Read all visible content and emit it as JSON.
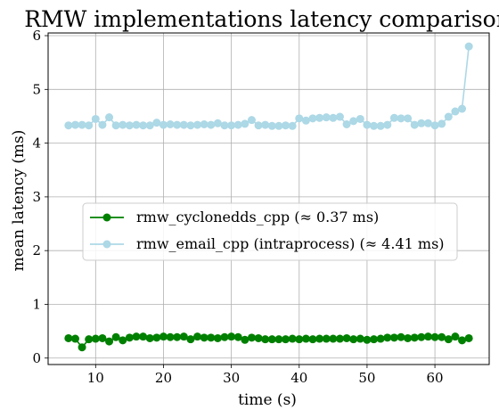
{
  "chart_data": {
    "type": "line",
    "title": "RMW implementations latency comparison",
    "xlabel": "time (s)",
    "ylabel": "mean latency (ms)",
    "xlim": [
      3.0,
      68.0
    ],
    "ylim": [
      -0.12,
      6.05
    ],
    "xticks": [
      10,
      20,
      30,
      40,
      50,
      60
    ],
    "yticks": [
      0,
      1,
      2,
      3,
      4,
      5,
      6
    ],
    "grid": true,
    "legend_position": "center",
    "x": [
      6,
      7,
      8,
      9,
      10,
      11,
      12,
      13,
      14,
      15,
      16,
      17,
      18,
      19,
      20,
      21,
      22,
      23,
      24,
      25,
      26,
      27,
      28,
      29,
      30,
      31,
      32,
      33,
      34,
      35,
      36,
      37,
      38,
      39,
      40,
      41,
      42,
      43,
      44,
      45,
      46,
      47,
      48,
      49,
      50,
      51,
      52,
      53,
      54,
      55,
      56,
      57,
      58,
      59,
      60,
      61,
      62,
      63,
      64,
      65
    ],
    "series": [
      {
        "name": "rmw_cyclonedds_cpp (≈ 0.37 ms)",
        "color": "#008000",
        "values": [
          0.37,
          0.36,
          0.2,
          0.35,
          0.36,
          0.37,
          0.31,
          0.39,
          0.33,
          0.38,
          0.4,
          0.4,
          0.37,
          0.38,
          0.4,
          0.39,
          0.39,
          0.4,
          0.35,
          0.4,
          0.38,
          0.38,
          0.37,
          0.39,
          0.4,
          0.39,
          0.34,
          0.38,
          0.37,
          0.35,
          0.35,
          0.35,
          0.35,
          0.36,
          0.35,
          0.36,
          0.35,
          0.36,
          0.36,
          0.36,
          0.36,
          0.37,
          0.35,
          0.36,
          0.34,
          0.35,
          0.36,
          0.38,
          0.38,
          0.39,
          0.37,
          0.38,
          0.39,
          0.4,
          0.39,
          0.39,
          0.35,
          0.4,
          0.33,
          0.37
        ]
      },
      {
        "name": "rmw_email_cpp (intraprocess) (≈ 4.41 ms)",
        "color": "#add8e6",
        "values": [
          4.33,
          4.34,
          4.34,
          4.33,
          4.45,
          4.34,
          4.48,
          4.33,
          4.34,
          4.33,
          4.34,
          4.33,
          4.33,
          4.38,
          4.34,
          4.35,
          4.34,
          4.34,
          4.33,
          4.34,
          4.35,
          4.34,
          4.37,
          4.33,
          4.33,
          4.34,
          4.36,
          4.43,
          4.33,
          4.34,
          4.32,
          4.32,
          4.33,
          4.32,
          4.46,
          4.42,
          4.46,
          4.47,
          4.48,
          4.47,
          4.49,
          4.35,
          4.41,
          4.45,
          4.34,
          4.32,
          4.32,
          4.34,
          4.47,
          4.46,
          4.46,
          4.34,
          4.37,
          4.37,
          4.33,
          4.36,
          4.49,
          4.59,
          4.64,
          5.8
        ]
      }
    ]
  }
}
